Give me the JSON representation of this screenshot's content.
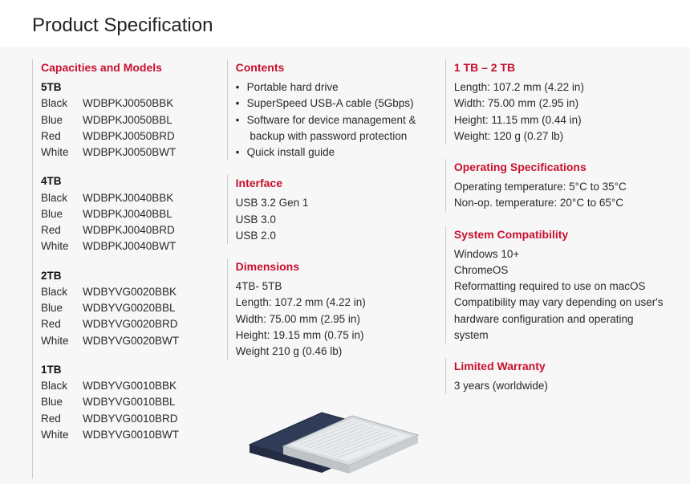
{
  "page": {
    "title": "Product Specification"
  },
  "colors": {
    "heading": "#c8102e",
    "text": "#2a2a2a",
    "bg": "#f7f7f7",
    "divider": "#cccccc"
  },
  "capacities": {
    "heading": "Capacities and Models",
    "groups": [
      {
        "title": "5TB",
        "rows": [
          {
            "color": "Black",
            "sku": "WDBPKJ0050BBK"
          },
          {
            "color": "Blue",
            "sku": "WDBPKJ0050BBL"
          },
          {
            "color": "Red",
            "sku": "WDBPKJ0050BRD"
          },
          {
            "color": "White",
            "sku": "WDBPKJ0050BWT"
          }
        ]
      },
      {
        "title": "4TB",
        "rows": [
          {
            "color": "Black",
            "sku": "WDBPKJ0040BBK"
          },
          {
            "color": "Blue",
            "sku": "WDBPKJ0040BBL"
          },
          {
            "color": "Red",
            "sku": "WDBPKJ0040BRD"
          },
          {
            "color": "White",
            "sku": "WDBPKJ0040BWT"
          }
        ]
      },
      {
        "title": "2TB",
        "rows": [
          {
            "color": "Black",
            "sku": "WDBYVG0020BBK"
          },
          {
            "color": "Blue",
            "sku": "WDBYVG0020BBL"
          },
          {
            "color": "Red",
            "sku": "WDBYVG0020BRD"
          },
          {
            "color": "White",
            "sku": "WDBYVG0020BWT"
          }
        ]
      },
      {
        "title": "1TB",
        "rows": [
          {
            "color": "Black",
            "sku": "WDBYVG0010BBK"
          },
          {
            "color": "Blue",
            "sku": "WDBYVG0010BBL"
          },
          {
            "color": "Red",
            "sku": "WDBYVG0010BRD"
          },
          {
            "color": "White",
            "sku": "WDBYVG0010BWT"
          }
        ]
      }
    ]
  },
  "contents": {
    "heading": "Contents",
    "items": [
      "Portable hard drive",
      "SuperSpeed USB-A cable (5Gbps)",
      "Software for device management & backup with password protection",
      "Quick install guide"
    ]
  },
  "interface": {
    "heading": "Interface",
    "items": [
      "USB 3.2 Gen 1",
      "USB 3.0",
      "USB 2.0"
    ]
  },
  "dimensions_large": {
    "heading": "Dimensions",
    "subtitle": "4TB- 5TB",
    "lines": [
      "Length: 107.2 mm (4.22 in)",
      "Width: 75.00 mm (2.95 in)",
      "Height: 19.15 mm (0.75 in)",
      "Weight 210 g (0.46 lb)"
    ]
  },
  "dimensions_small": {
    "heading": "1 TB – 2 TB",
    "lines": [
      "Length: 107.2 mm (4.22 in)",
      "Width: 75.00 mm (2.95 in)",
      "Height: 11.15 mm (0.44 in)",
      "Weight: 120 g (0.27 lb)"
    ]
  },
  "opspec": {
    "heading": "Operating Specifications",
    "lines": [
      "Operating temperature: 5°C to 35°C",
      "Non-op. temperature: 20°C to 65°C"
    ]
  },
  "syscompat": {
    "heading": "System Compatibility",
    "lines": [
      "Windows 10+",
      "ChromeOS",
      "Reformatting required to use on macOS",
      "Compatibility may vary depending on user's hardware configuration and operating system"
    ]
  },
  "warranty": {
    "heading": "Limited Warranty",
    "line": "3 years (worldwide)"
  },
  "product_image": {
    "drive_back": {
      "fill": "#2f3b57",
      "stroke": "#1e2538"
    },
    "drive_front": {
      "fill": "#d9dcde",
      "stroke": "#a8adb2",
      "face": "#e9ecee"
    }
  }
}
